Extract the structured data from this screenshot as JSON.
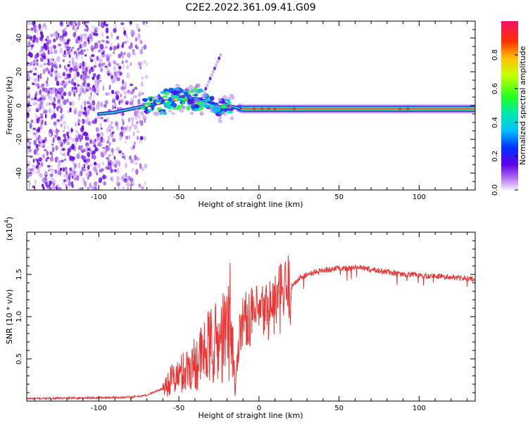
{
  "figure": {
    "title": "C2E2.2022.361.09.41.G09"
  },
  "chart_data": [
    {
      "type": "heatmap",
      "xlabel": "Height of straight line (km)",
      "ylabel": "Frequency (Hz)",
      "xlim": [
        -145,
        135
      ],
      "ylim": [
        -50,
        50
      ],
      "xticks": [
        -100,
        -50,
        0,
        50,
        100
      ],
      "yticks": [
        -40,
        -20,
        0,
        20,
        40
      ],
      "colorbar": {
        "label": "Normalized spectral amplitude",
        "ticks": [
          0.0,
          0.2,
          0.4,
          0.6,
          0.8
        ],
        "range": [
          0,
          1
        ]
      },
      "ridge": {
        "x": [
          -100,
          -90,
          -80,
          -70,
          -60,
          -50,
          -40,
          -30,
          -25,
          -20,
          -15,
          -10,
          0,
          10,
          50,
          100,
          135
        ],
        "y": [
          -5,
          -4,
          -2,
          0,
          2,
          4,
          4,
          2,
          -1,
          0,
          -1,
          -2,
          -2,
          -2,
          -2,
          -2,
          -2
        ]
      }
    },
    {
      "type": "line",
      "xlabel": "Height of straight line (km)",
      "ylabel": "SNR (10 * v/v)",
      "yscale_label": "(x10",
      "yscale_exponent": "4",
      "xlim": [
        -145,
        135
      ],
      "ylim": [
        0,
        20000
      ],
      "xticks": [
        -100,
        -50,
        0,
        50,
        100
      ],
      "yticks": [
        5000,
        10000,
        15000
      ],
      "ytick_labels": [
        "0.5",
        "1.0",
        "1.5"
      ],
      "series": [
        {
          "color": "#ee3333",
          "x": [
            -145,
            -120,
            -100,
            -80,
            -70,
            -60,
            -55,
            -50,
            -45,
            -40,
            -35,
            -30,
            -25,
            -20,
            -18,
            -16,
            -15,
            -12,
            -10,
            -5,
            0,
            5,
            10,
            15,
            20,
            25,
            30,
            40,
            50,
            60,
            70,
            80,
            90,
            100,
            110,
            120,
            130,
            135
          ],
          "y": [
            300,
            350,
            400,
            450,
            700,
            1500,
            2500,
            3000,
            3800,
            4500,
            5500,
            6500,
            7000,
            8000,
            10000,
            6000,
            700,
            9000,
            9500,
            10000,
            10200,
            10800,
            11500,
            12500,
            13500,
            14500,
            15000,
            15500,
            15700,
            15800,
            15600,
            15300,
            15000,
            14900,
            14800,
            14700,
            14500,
            14400
          ]
        }
      ]
    }
  ]
}
